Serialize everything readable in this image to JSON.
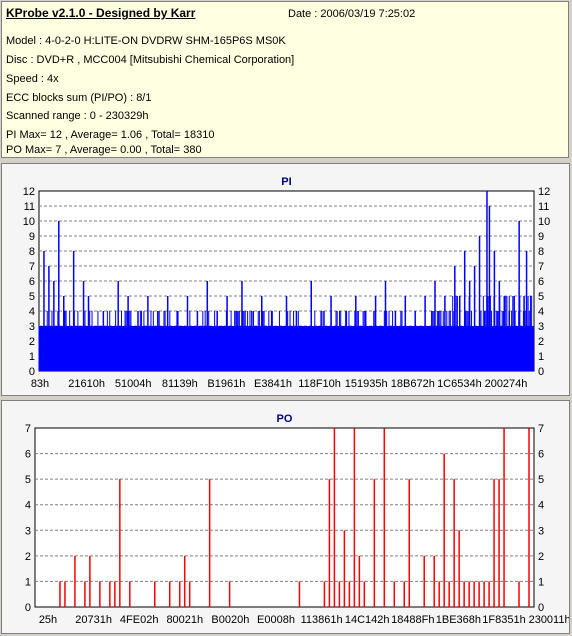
{
  "header": {
    "title": "KProbe v2.1.0 - Designed by Karr",
    "date": "Date : 2006/03/19 7:25:02",
    "lines": [
      "Model : 4-0-2-0 H:LITE-ON DVDRW SHM-165P6S MS0K",
      "Disc : DVD+R , MCC004 [Mitsubishi Chemical Corporation]",
      "Speed : 4x",
      "ECC blocks sum (PI/PO) : 8/1",
      "Scanned range : 0 - 230329h",
      "PI Max= 12 , Average= 1.06 , Total= 18310",
      "PO Max= 7 , Average= 0.00 , Total= 380"
    ]
  },
  "chart_data": [
    {
      "type": "bar",
      "title": "PI",
      "ylim": [
        0,
        12
      ],
      "yticks": [
        0,
        1,
        2,
        3,
        4,
        5,
        6,
        7,
        8,
        9,
        10,
        11,
        12
      ],
      "xticks": [
        "83h",
        "21610h",
        "51004h",
        "81139h",
        "B1961h",
        "E3841h",
        "118F10h",
        "151935h",
        "18B672h",
        "1C6534h",
        "200274h"
      ],
      "color": "#0000ff",
      "grid": true,
      "base": 3,
      "spikes": [
        [
          0.01,
          8
        ],
        [
          0.02,
          7
        ],
        [
          0.03,
          6
        ],
        [
          0.04,
          10
        ],
        [
          0.05,
          5
        ],
        [
          0.07,
          8
        ],
        [
          0.09,
          6
        ],
        [
          0.1,
          5
        ],
        [
          0.13,
          4
        ],
        [
          0.16,
          6
        ],
        [
          0.18,
          5
        ],
        [
          0.2,
          4
        ],
        [
          0.22,
          5
        ],
        [
          0.24,
          4
        ],
        [
          0.26,
          5
        ],
        [
          0.28,
          4
        ],
        [
          0.3,
          5
        ],
        [
          0.32,
          4
        ],
        [
          0.34,
          6
        ],
        [
          0.36,
          4
        ],
        [
          0.38,
          5
        ],
        [
          0.4,
          4
        ],
        [
          0.41,
          6
        ],
        [
          0.43,
          4
        ],
        [
          0.45,
          5
        ],
        [
          0.47,
          4
        ],
        [
          0.5,
          5
        ],
        [
          0.52,
          4
        ],
        [
          0.55,
          6
        ],
        [
          0.57,
          4
        ],
        [
          0.59,
          5
        ],
        [
          0.62,
          4
        ],
        [
          0.64,
          5
        ],
        [
          0.66,
          4
        ],
        [
          0.68,
          5
        ],
        [
          0.7,
          6
        ],
        [
          0.72,
          4
        ],
        [
          0.74,
          5
        ],
        [
          0.76,
          4
        ],
        [
          0.78,
          5
        ],
        [
          0.8,
          6
        ],
        [
          0.82,
          5
        ],
        [
          0.84,
          7
        ],
        [
          0.85,
          5
        ],
        [
          0.86,
          8
        ],
        [
          0.87,
          6
        ],
        [
          0.88,
          7
        ],
        [
          0.89,
          9
        ],
        [
          0.905,
          12
        ],
        [
          0.91,
          11
        ],
        [
          0.92,
          8
        ],
        [
          0.93,
          6
        ],
        [
          0.94,
          5
        ],
        [
          0.95,
          4
        ],
        [
          0.96,
          5
        ],
        [
          0.97,
          10
        ],
        [
          0.98,
          5
        ],
        [
          0.985,
          8
        ]
      ]
    },
    {
      "type": "bar",
      "title": "PO",
      "ylim": [
        0,
        7
      ],
      "yticks": [
        0,
        1,
        2,
        3,
        4,
        5,
        6,
        7
      ],
      "xticks": [
        "25h",
        "20731h",
        "4FE02h",
        "80021h",
        "B0020h",
        "E0008h",
        "113861h",
        "14C142h",
        "18488Fh",
        "1BE368h",
        "1F8351h",
        "230011h"
      ],
      "color": "#ff0000",
      "grid": true,
      "bars": [
        [
          0.05,
          1
        ],
        [
          0.06,
          1
        ],
        [
          0.08,
          2
        ],
        [
          0.1,
          1
        ],
        [
          0.11,
          2
        ],
        [
          0.13,
          1
        ],
        [
          0.15,
          1
        ],
        [
          0.16,
          1
        ],
        [
          0.17,
          5
        ],
        [
          0.19,
          1
        ],
        [
          0.24,
          1
        ],
        [
          0.27,
          1
        ],
        [
          0.29,
          1
        ],
        [
          0.3,
          2
        ],
        [
          0.31,
          1
        ],
        [
          0.35,
          5
        ],
        [
          0.39,
          1
        ],
        [
          0.53,
          1
        ],
        [
          0.58,
          1
        ],
        [
          0.59,
          5
        ],
        [
          0.6,
          7
        ],
        [
          0.61,
          1
        ],
        [
          0.62,
          3
        ],
        [
          0.63,
          1
        ],
        [
          0.64,
          7
        ],
        [
          0.65,
          2
        ],
        [
          0.66,
          1
        ],
        [
          0.68,
          5
        ],
        [
          0.7,
          7
        ],
        [
          0.72,
          1
        ],
        [
          0.74,
          1
        ],
        [
          0.75,
          5
        ],
        [
          0.78,
          2
        ],
        [
          0.8,
          2
        ],
        [
          0.81,
          1
        ],
        [
          0.82,
          6
        ],
        [
          0.83,
          1
        ],
        [
          0.84,
          5
        ],
        [
          0.85,
          3
        ],
        [
          0.86,
          1
        ],
        [
          0.87,
          1
        ],
        [
          0.88,
          1
        ],
        [
          0.89,
          1
        ],
        [
          0.9,
          1
        ],
        [
          0.91,
          1
        ],
        [
          0.92,
          5
        ],
        [
          0.93,
          5
        ],
        [
          0.94,
          7
        ],
        [
          0.97,
          1
        ],
        [
          0.99,
          7
        ]
      ]
    }
  ]
}
